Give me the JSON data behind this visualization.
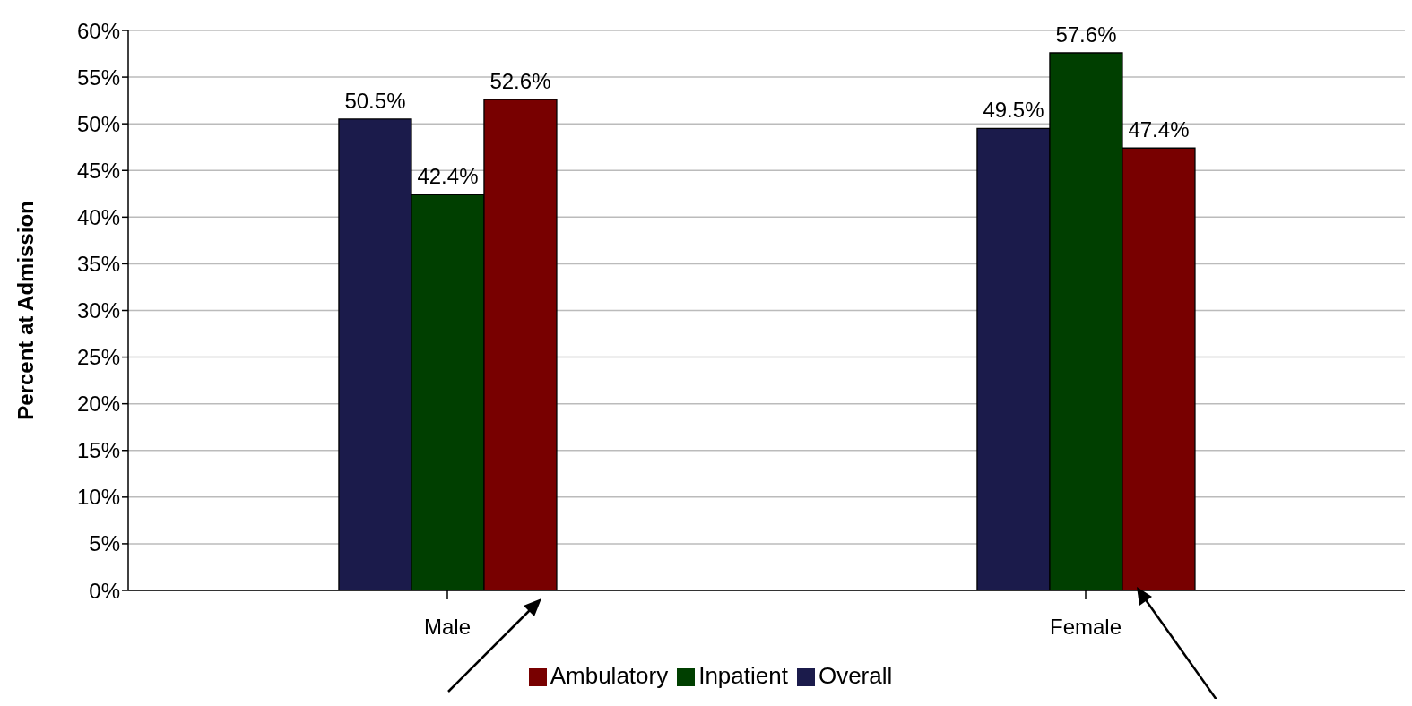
{
  "chart_data": {
    "type": "bar",
    "ylabel": "Percent at Admission",
    "categories": [
      "Male",
      "Female"
    ],
    "series": [
      {
        "name": "Overall",
        "color": "#1b1b4b",
        "values": [
          50.5,
          49.5
        ],
        "value_labels": [
          "50.5%",
          "49.5%"
        ]
      },
      {
        "name": "Inpatient",
        "color": "#003f00",
        "values": [
          42.4,
          57.6
        ],
        "value_labels": [
          "42.4%",
          "57.6%"
        ]
      },
      {
        "name": "Ambulatory",
        "color": "#780000",
        "values": [
          52.6,
          47.4
        ],
        "value_labels": [
          "52.6%",
          "47.4%"
        ]
      }
    ],
    "ylim": [
      0,
      60
    ],
    "yticks": [
      {
        "value": 0,
        "label": "0%"
      },
      {
        "value": 5,
        "label": "5%"
      },
      {
        "value": 10,
        "label": "10%"
      },
      {
        "value": 15,
        "label": "15%"
      },
      {
        "value": 20,
        "label": "20%"
      },
      {
        "value": 25,
        "label": "25%"
      },
      {
        "value": 30,
        "label": "30%"
      },
      {
        "value": 35,
        "label": "35%"
      },
      {
        "value": 40,
        "label": "40%"
      },
      {
        "value": 45,
        "label": "45%"
      },
      {
        "value": 50,
        "label": "50%"
      },
      {
        "value": 55,
        "label": "55%"
      },
      {
        "value": 60,
        "label": "60%"
      }
    ],
    "grid": "y",
    "legend": "bottom"
  }
}
